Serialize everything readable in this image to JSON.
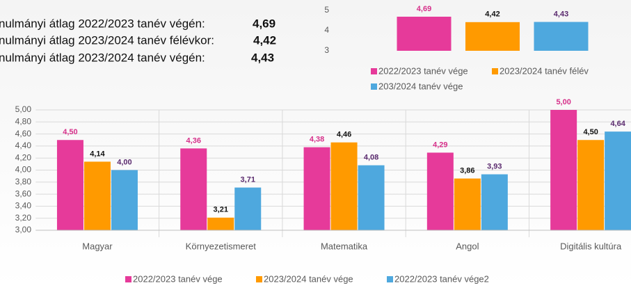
{
  "summary": [
    {
      "label": "nulmányi átlag 2022/2023 tanév végén:",
      "value": "4,69"
    },
    {
      "label": "nulmányi átlag 2023/2024 tanév félévkor:",
      "value": "4,42"
    },
    {
      "label": "nulmányi átlag 2023/2024 tanév végén:",
      "value": "4,43"
    }
  ],
  "chart_data": [
    {
      "type": "bar",
      "ylim": [
        3,
        5
      ],
      "yticks": [
        3,
        4,
        5
      ],
      "series": [
        {
          "name": "2022/2023 tanév vége",
          "color": "#e63a9a",
          "label_color": "#d6308a",
          "values": [
            4.69
          ],
          "value_labels": [
            "4,69"
          ]
        },
        {
          "name": "2023/2024 tanév félév",
          "color": "#ff9a00",
          "label_color": "#111111",
          "values": [
            4.42
          ],
          "value_labels": [
            "4,42"
          ]
        },
        {
          "name": "203/2024 tanév vége",
          "color": "#4ea8de",
          "label_color": "#5a2a6e",
          "values": [
            4.43
          ],
          "value_labels": [
            "4,43"
          ]
        }
      ]
    },
    {
      "type": "bar",
      "categories": [
        "Magyar",
        "Környezetismeret",
        "Matematika",
        "Angol",
        "Digitális kultúra"
      ],
      "ylim": [
        3,
        5
      ],
      "yticks": [
        {
          "value": 3,
          "label": "3,00"
        },
        {
          "value": 3.2,
          "label": "3,20"
        },
        {
          "value": 3.4,
          "label": "3,40"
        },
        {
          "value": 3.6,
          "label": "3,60"
        },
        {
          "value": 3.8,
          "label": "3,80"
        },
        {
          "value": 4,
          "label": "4,00"
        },
        {
          "value": 4.2,
          "label": "4,20"
        },
        {
          "value": 4.4,
          "label": "4,40"
        },
        {
          "value": 4.6,
          "label": "4,60"
        },
        {
          "value": 4.8,
          "label": "4,80"
        },
        {
          "value": 5,
          "label": "5,00"
        }
      ],
      "grid": true,
      "series": [
        {
          "name": "2022/2023 tanév vége",
          "color": "#e63a9a",
          "label_color": "#d6308a",
          "values": [
            4.5,
            4.36,
            4.38,
            4.29,
            5.0
          ],
          "value_labels": [
            "4,50",
            "4,36",
            "4,38",
            "4,29",
            "5,00"
          ]
        },
        {
          "name": "2023/2024 tanév vége",
          "color": "#ff9a00",
          "label_color": "#111111",
          "values": [
            4.14,
            3.21,
            4.46,
            3.86,
            4.5
          ],
          "value_labels": [
            "4,14",
            "3,21",
            "4,46",
            "3,86",
            "4,50"
          ]
        },
        {
          "name": "2022/2023 tanév vége2",
          "color": "#4ea8de",
          "label_color": "#5a2a6e",
          "values": [
            4.0,
            3.71,
            4.08,
            3.93,
            4.64
          ],
          "value_labels": [
            "4,00",
            "3,71",
            "4,08",
            "3,93",
            "4,64"
          ]
        }
      ]
    }
  ]
}
